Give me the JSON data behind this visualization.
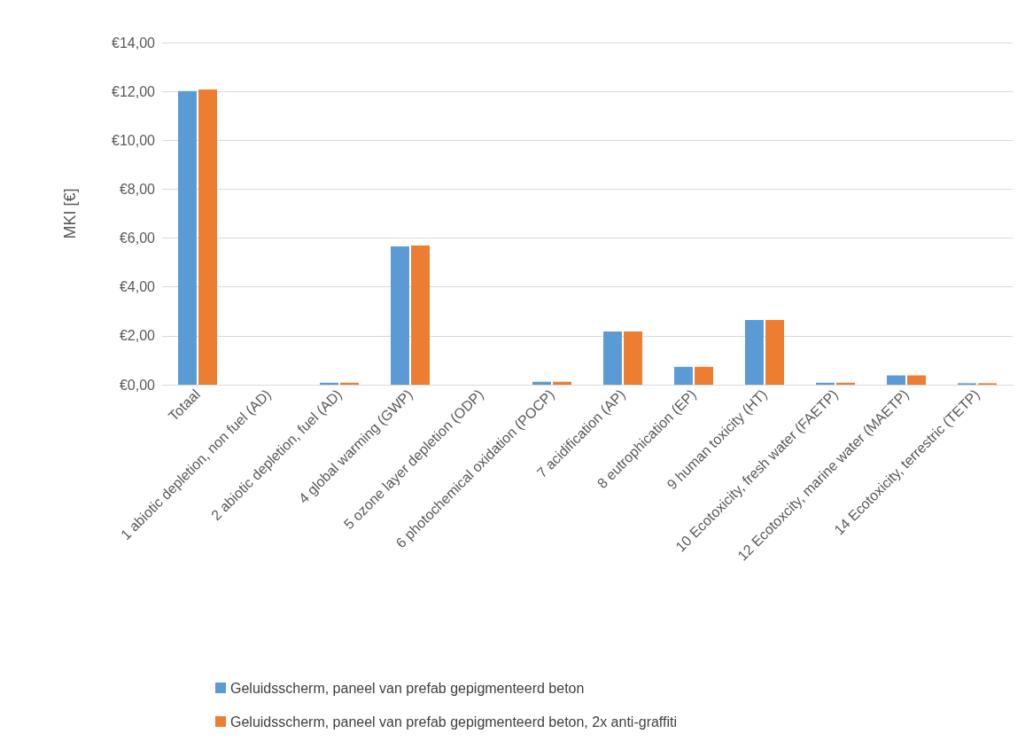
{
  "chart_data": {
    "type": "bar",
    "ylabel": "MKI [€]",
    "categories": [
      "Totaal",
      "1 abiotic depletion, non fuel (AD)",
      "2 abiotic depletion, fuel (AD)",
      "4 global warming (GWP)",
      "5 ozone layer depletion (ODP)",
      "6 photochemical oxidation (POCP)",
      "7 acidification (AP)",
      "8 eutrophication (EP)",
      "9 human toxicity (HT)",
      "10 Ecotoxicity, fresh water (FAETP)",
      "12 Ecotoxcity, marine water (MAETP)",
      "14 Ecotoxicity, terrestric (TETP)"
    ],
    "series": [
      {
        "name": "Geluidsscherm, paneel van prefab gepigmenteerd beton",
        "color": "#5b9bd5",
        "values": [
          12.01,
          0,
          0.08,
          5.66,
          0,
          0.12,
          2.18,
          0.73,
          2.65,
          0.08,
          0.38,
          0.06
        ]
      },
      {
        "name": "Geluidsscherm, paneel van prefab gepigmenteerd beton, 2x anti-graffiti",
        "color": "#ed7d31",
        "values": [
          12.08,
          0,
          0.08,
          5.69,
          0,
          0.12,
          2.18,
          0.73,
          2.65,
          0.08,
          0.38,
          0.06
        ]
      }
    ],
    "ylim": [
      0,
      14
    ],
    "yticks": [
      {
        "value": 0,
        "label": "€0,00"
      },
      {
        "value": 2,
        "label": "€2,00"
      },
      {
        "value": 4,
        "label": "€4,00"
      },
      {
        "value": 6,
        "label": "€6,00"
      },
      {
        "value": 8,
        "label": "€8,00"
      },
      {
        "value": 10,
        "label": "€10,00"
      },
      {
        "value": 12,
        "label": "€12,00"
      },
      {
        "value": 14,
        "label": "€14,00"
      }
    ],
    "grid": "y",
    "legend": "bottom"
  }
}
